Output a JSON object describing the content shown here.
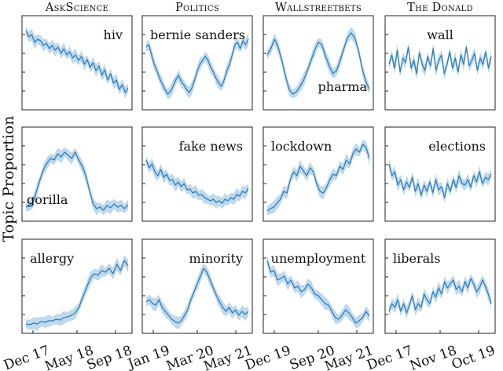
{
  "ylabel": "Topic Proportion",
  "columns": [
    {
      "title": "AskScience",
      "xticks": [
        "Dec 17",
        "May 18",
        "Sep 18"
      ]
    },
    {
      "title": "Politics",
      "xticks": [
        "Jan 19",
        "Mar 20",
        "May 21"
      ]
    },
    {
      "title": "Wallstreetbets",
      "xticks": [
        "Dec 19",
        "Sep 20",
        "May 21"
      ]
    },
    {
      "title": "The Donald",
      "xticks": [
        "Dec 17",
        "Nov 18",
        "Oct 19"
      ]
    }
  ],
  "chart_data": [
    {
      "type": "area",
      "subreddit": "AskScience",
      "topic": "hiv",
      "label_pos": "top-right",
      "values": [
        0.93,
        0.85,
        0.88,
        0.78,
        0.82,
        0.8,
        0.74,
        0.77,
        0.7,
        0.74,
        0.68,
        0.72,
        0.64,
        0.7,
        0.62,
        0.66,
        0.58,
        0.62,
        0.55,
        0.6,
        0.5,
        0.56,
        0.46,
        0.52,
        0.42,
        0.48,
        0.36,
        0.43,
        0.3,
        0.38,
        0.26,
        0.3,
        0.18,
        0.24,
        0.14,
        0.2
      ]
    },
    {
      "type": "area",
      "subreddit": "Politics",
      "topic": "bernie sanders",
      "label_pos": "top-left",
      "values": [
        0.72,
        0.75,
        0.62,
        0.5,
        0.42,
        0.32,
        0.25,
        0.18,
        0.12,
        0.15,
        0.22,
        0.3,
        0.36,
        0.28,
        0.24,
        0.18,
        0.14,
        0.2,
        0.3,
        0.42,
        0.5,
        0.55,
        0.6,
        0.55,
        0.46,
        0.4,
        0.32,
        0.26,
        0.22,
        0.3,
        0.42,
        0.5,
        0.62,
        0.75,
        0.78,
        0.7,
        0.8,
        0.75,
        0.82
      ]
    },
    {
      "type": "area",
      "subreddit": "Wallstreetbets",
      "topic": "pharma",
      "label_pos": "bottom-right",
      "values": [
        0.62,
        0.7,
        0.82,
        0.72,
        0.55,
        0.35,
        0.18,
        0.12,
        0.15,
        0.22,
        0.3,
        0.42,
        0.55,
        0.68,
        0.78,
        0.75,
        0.6,
        0.48,
        0.38,
        0.42,
        0.55,
        0.7,
        0.84,
        0.9,
        0.84,
        0.68,
        0.45,
        0.28,
        0.18
      ]
    },
    {
      "type": "area",
      "subreddit": "The Donald",
      "topic": "wall",
      "label_pos": "top-center",
      "values": [
        0.5,
        0.62,
        0.45,
        0.68,
        0.4,
        0.58,
        0.52,
        0.72,
        0.45,
        0.55,
        0.38,
        0.65,
        0.5,
        0.42,
        0.6,
        0.48,
        0.7,
        0.42,
        0.55,
        0.62,
        0.38,
        0.5,
        0.66,
        0.45,
        0.58,
        0.4,
        0.62,
        0.5,
        0.72,
        0.48,
        0.55,
        0.64,
        0.42,
        0.58,
        0.5,
        0.66,
        0.45,
        0.6
      ]
    },
    {
      "type": "area",
      "subreddit": "AskScience",
      "topic": "gorilla",
      "label_pos": "bottom-left",
      "values": [
        0.1,
        0.12,
        0.16,
        0.3,
        0.45,
        0.58,
        0.66,
        0.72,
        0.7,
        0.78,
        0.74,
        0.8,
        0.76,
        0.72,
        0.8,
        0.7,
        0.62,
        0.5,
        0.32,
        0.15,
        0.08,
        0.1,
        0.06,
        0.12,
        0.09,
        0.14,
        0.1,
        0.12,
        0.08,
        0.13
      ]
    },
    {
      "type": "area",
      "subreddit": "Politics",
      "topic": "fake news",
      "label_pos": "top-right",
      "values": [
        0.7,
        0.6,
        0.65,
        0.55,
        0.5,
        0.58,
        0.48,
        0.52,
        0.44,
        0.45,
        0.38,
        0.42,
        0.36,
        0.4,
        0.32,
        0.33,
        0.28,
        0.3,
        0.25,
        0.26,
        0.22,
        0.2,
        0.18,
        0.2,
        0.16,
        0.18,
        0.15,
        0.2,
        0.18,
        0.22,
        0.2,
        0.26,
        0.24,
        0.3,
        0.28,
        0.34
      ]
    },
    {
      "type": "area",
      "subreddit": "Wallstreetbets",
      "topic": "lockdown",
      "label_pos": "top-left",
      "values": [
        0.05,
        0.08,
        0.1,
        0.15,
        0.2,
        0.3,
        0.28,
        0.45,
        0.55,
        0.5,
        0.62,
        0.56,
        0.5,
        0.6,
        0.55,
        0.4,
        0.3,
        0.28,
        0.35,
        0.45,
        0.52,
        0.5,
        0.62,
        0.58,
        0.7,
        0.65,
        0.78,
        0.84,
        0.8,
        0.9,
        0.86,
        0.72
      ]
    },
    {
      "type": "area",
      "subreddit": "The Donald",
      "topic": "elections",
      "label_pos": "top-right",
      "values": [
        0.65,
        0.5,
        0.55,
        0.38,
        0.45,
        0.32,
        0.42,
        0.35,
        0.48,
        0.3,
        0.4,
        0.25,
        0.38,
        0.3,
        0.42,
        0.28,
        0.45,
        0.32,
        0.36,
        0.22,
        0.4,
        0.3,
        0.45,
        0.35,
        0.5,
        0.4,
        0.38,
        0.45,
        0.35,
        0.5,
        0.42,
        0.55,
        0.4,
        0.48,
        0.45,
        0.52
      ]
    },
    {
      "type": "area",
      "subreddit": "AskScience",
      "topic": "allergy",
      "label_pos": "top-left",
      "values": [
        0.04,
        0.03,
        0.05,
        0.04,
        0.07,
        0.06,
        0.08,
        0.08,
        0.1,
        0.09,
        0.12,
        0.13,
        0.15,
        0.18,
        0.25,
        0.38,
        0.5,
        0.62,
        0.68,
        0.66,
        0.72,
        0.7,
        0.75,
        0.68,
        0.8,
        0.72,
        0.85,
        0.78
      ]
    },
    {
      "type": "area",
      "subreddit": "Politics",
      "topic": "minority",
      "label_pos": "top-right",
      "values": [
        0.32,
        0.35,
        0.3,
        0.28,
        0.35,
        0.25,
        0.2,
        0.15,
        0.1,
        0.07,
        0.05,
        0.08,
        0.15,
        0.22,
        0.35,
        0.45,
        0.55,
        0.65,
        0.75,
        0.7,
        0.6,
        0.5,
        0.4,
        0.32,
        0.25,
        0.2,
        0.25,
        0.18,
        0.22,
        0.15,
        0.2,
        0.16,
        0.2
      ]
    },
    {
      "type": "area",
      "subreddit": "Wallstreetbets",
      "topic": "unemployment",
      "label_pos": "top-center",
      "values": [
        0.85,
        0.7,
        0.72,
        0.6,
        0.62,
        0.65,
        0.55,
        0.6,
        0.5,
        0.52,
        0.45,
        0.48,
        0.55,
        0.5,
        0.42,
        0.4,
        0.35,
        0.3,
        0.28,
        0.2,
        0.12,
        0.1,
        0.15,
        0.22,
        0.18,
        0.12,
        0.05,
        0.08,
        0.12,
        0.2,
        0.14
      ]
    },
    {
      "type": "area",
      "subreddit": "The Donald",
      "topic": "liberals",
      "label_pos": "top-left",
      "values": [
        0.2,
        0.3,
        0.25,
        0.35,
        0.2,
        0.3,
        0.18,
        0.28,
        0.4,
        0.22,
        0.3,
        0.25,
        0.42,
        0.35,
        0.3,
        0.45,
        0.38,
        0.5,
        0.42,
        0.58,
        0.5,
        0.55,
        0.6,
        0.48,
        0.52,
        0.45,
        0.58,
        0.5,
        0.62,
        0.55,
        0.45,
        0.5,
        0.6,
        0.52,
        0.42,
        0.3
      ]
    }
  ]
}
